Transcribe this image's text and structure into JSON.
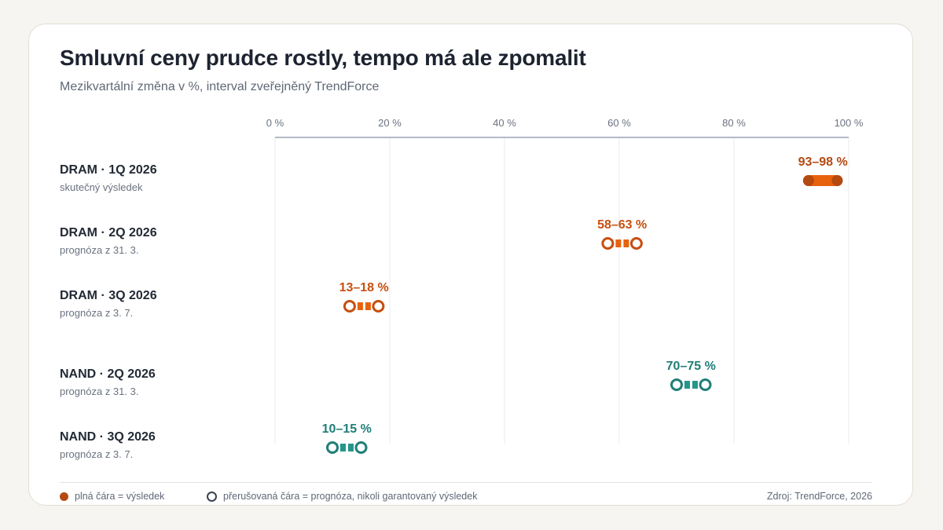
{
  "colors": {
    "dram": "#c84f10",
    "dram_dark": "#b44a10",
    "dram_fill": "#e8620e",
    "nand": "#1f7f78",
    "nand_fill": "#25968c",
    "axis": "#9aa3b2",
    "grid": "#eceef2"
  },
  "chart_data": {
    "type": "range-dot",
    "title": "Smluvní ceny prudce rostly, tempo má ale zpomalit",
    "subtitle": "Mezikvartální změna v %, interval zveřejněný TrendForce",
    "xlim": [
      0,
      100
    ],
    "x_ticks": [
      0,
      20,
      40,
      60,
      80,
      100
    ],
    "x_tick_labels": [
      "0 %",
      "20 %",
      "40 %",
      "60 %",
      "80 %",
      "100 %"
    ],
    "grid": true,
    "rows": [
      {
        "name": "DRAM · 1Q 2026",
        "note": "skutečný výsledek",
        "low": 93,
        "high": 98,
        "label": "93–98 %",
        "series": "dram",
        "kind": "result"
      },
      {
        "name": "DRAM · 2Q 2026",
        "note": "prognóza z 31. 3.",
        "low": 58,
        "high": 63,
        "label": "58–63 %",
        "series": "dram",
        "kind": "forecast"
      },
      {
        "name": "DRAM · 3Q 2026",
        "note": "prognóza z 3. 7.",
        "low": 13,
        "high": 18,
        "label": "13–18 %",
        "series": "dram",
        "kind": "forecast"
      },
      {
        "name": "NAND · 2Q 2026",
        "note": "prognóza z 31. 3.",
        "low": 70,
        "high": 75,
        "label": "70–75 %",
        "series": "nand",
        "kind": "forecast"
      },
      {
        "name": "NAND · 3Q 2026",
        "note": "prognóza z 3. 7.",
        "low": 10,
        "high": 15,
        "label": "10–15 %",
        "series": "nand",
        "kind": "forecast"
      }
    ]
  },
  "legend": {
    "solid": "plná čára = výsledek",
    "dashed": "přerušovaná čára = prognóza, nikoli garantovaný výsledek"
  },
  "source": "Zdroj: TrendForce, 2026"
}
